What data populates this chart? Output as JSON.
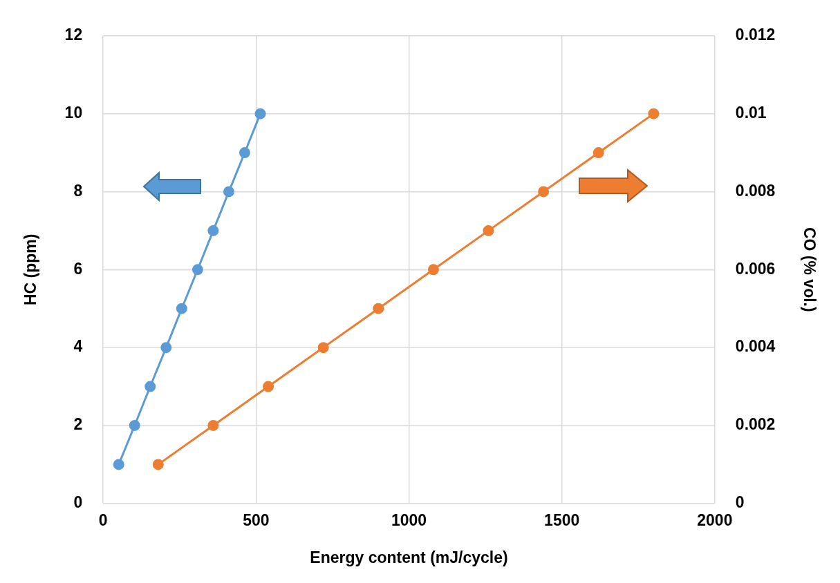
{
  "chart_data": {
    "type": "line",
    "xlabel": "Energy content (mJ/cycle)",
    "ylabel": "HC (ppm)",
    "y2label": "CO (% vol.)",
    "series": [
      {
        "color": "#5b9bd5",
        "x": [
          51,
          103,
          154,
          206,
          257,
          309,
          360,
          411,
          463,
          514
        ],
        "values": [
          1,
          2,
          3,
          4,
          5,
          6,
          7,
          8,
          9,
          10
        ]
      },
      {
        "color": "#ed7d31",
        "axis": "y2",
        "x": [
          180,
          360,
          540,
          720,
          900,
          1080,
          1260,
          1440,
          1620,
          1800
        ],
        "values": [
          0.001,
          0.002,
          0.003,
          0.004,
          0.005,
          0.006,
          0.007,
          0.008,
          0.009,
          0.01
        ]
      }
    ],
    "xlim": [
      0,
      2000
    ],
    "xticks": [
      0,
      500,
      1000,
      1500,
      2000
    ],
    "ylim": [
      0,
      12
    ],
    "yticks": [
      0,
      2,
      4,
      6,
      8,
      10,
      12
    ],
    "y2lim": [
      0,
      0.012
    ],
    "y2ticks": [
      0,
      0.002,
      0.004,
      0.006,
      0.008,
      0.01,
      0.012
    ],
    "grid": true,
    "legend": false,
    "marker": "circle",
    "line_style": "solid"
  }
}
